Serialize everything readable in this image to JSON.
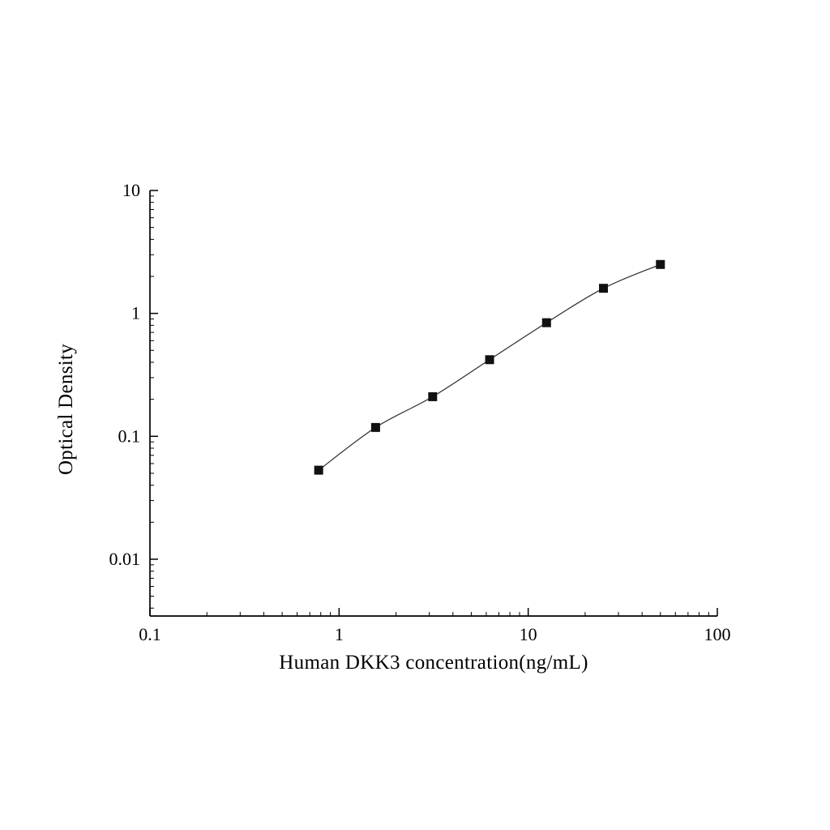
{
  "figure": {
    "background": "#ffffff"
  },
  "chart_data": {
    "type": "scatter",
    "title": "",
    "xlabel": "Human DKK3 concentration(ng/mL)",
    "ylabel": "Optical Density",
    "x_scale": "log",
    "y_scale": "log",
    "xlim": [
      0.1,
      100
    ],
    "ylim": [
      0.00345,
      10
    ],
    "x_major_ticks": [
      0.1,
      1,
      10,
      100
    ],
    "x_tick_labels": [
      "0.1",
      "1",
      "10",
      "100"
    ],
    "y_major_ticks": [
      0.01,
      0.1,
      1,
      10
    ],
    "y_tick_labels": [
      "0.01",
      "0.1",
      "1",
      "10"
    ],
    "grid": false,
    "legend": "none",
    "series": [
      {
        "name": "DKK3 standard curve",
        "marker": "square",
        "fit": "smooth sigmoidal (4PL) standard curve through points",
        "points": [
          {
            "x": 0.78,
            "y": 0.053
          },
          {
            "x": 1.56,
            "y": 0.118
          },
          {
            "x": 3.125,
            "y": 0.21
          },
          {
            "x": 6.25,
            "y": 0.42
          },
          {
            "x": 12.5,
            "y": 0.84
          },
          {
            "x": 25,
            "y": 1.6
          },
          {
            "x": 50,
            "y": 2.5
          }
        ]
      }
    ],
    "style": {
      "axis_color": "#000000",
      "marker_color": "#111111",
      "line_color": "#2b2b2b"
    }
  }
}
